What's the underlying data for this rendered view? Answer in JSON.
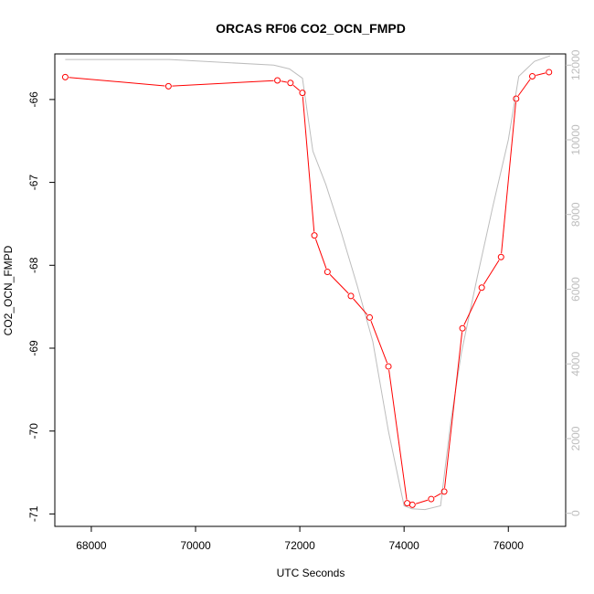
{
  "chart_data": {
    "type": "line",
    "title": "ORCAS RF06 CO2_OCN_FMPD",
    "xlabel": "UTC Seconds",
    "ylabel": "CO2_OCN_FMPD",
    "xlim": [
      67300,
      77100
    ],
    "ylim": [
      -71.15,
      -65.45
    ],
    "y2lim": [
      -350,
      12300
    ],
    "x_ticks": [
      68000,
      70000,
      72000,
      74000,
      76000
    ],
    "y_ticks": [
      -71,
      -70,
      -69,
      -68,
      -67,
      -66
    ],
    "y2_ticks": [
      0,
      2000,
      4000,
      6000,
      8000,
      10000,
      12000
    ],
    "x_tick_labels": [
      "68000",
      "70000",
      "72000",
      "74000",
      "76000"
    ],
    "y_tick_labels": [
      "-71",
      "-70",
      "-69",
      "-68",
      "-67",
      "-66"
    ],
    "y2_tick_labels": [
      "0",
      "2000",
      "4000",
      "6000",
      "8000",
      "10000",
      "12000"
    ],
    "series": [
      {
        "color": "#ff0000",
        "marker": "open-circle",
        "axis": "left",
        "x": [
          67500,
          69480,
          71570,
          71820,
          72050,
          72280,
          72530,
          72980,
          73340,
          73700,
          74060,
          74160,
          74520,
          74770,
          75120,
          75490,
          75860,
          76150,
          76460,
          76780
        ],
        "y": [
          -65.73,
          -65.84,
          -65.77,
          -65.8,
          -65.92,
          -67.64,
          -68.08,
          -68.37,
          -68.63,
          -69.22,
          -70.87,
          -70.89,
          -70.82,
          -70.73,
          -68.76,
          -68.27,
          -67.9,
          -65.99,
          -65.72,
          -65.67
        ]
      },
      {
        "color": "#bdbdbd",
        "marker": "none",
        "axis": "right",
        "x": [
          67500,
          69500,
          71500,
          71800,
          72050,
          72250,
          72500,
          72800,
          73100,
          73400,
          73700,
          74000,
          74150,
          74400,
          74700,
          74900,
          75100,
          75400,
          75700,
          76000,
          76200,
          76500,
          76800
        ],
        "y": [
          12150,
          12150,
          12000,
          11900,
          11650,
          9700,
          8800,
          7500,
          6100,
          4600,
          2200,
          200,
          120,
          100,
          200,
          2500,
          4300,
          6300,
          8200,
          10000,
          11700,
          12100,
          12250
        ]
      }
    ]
  }
}
